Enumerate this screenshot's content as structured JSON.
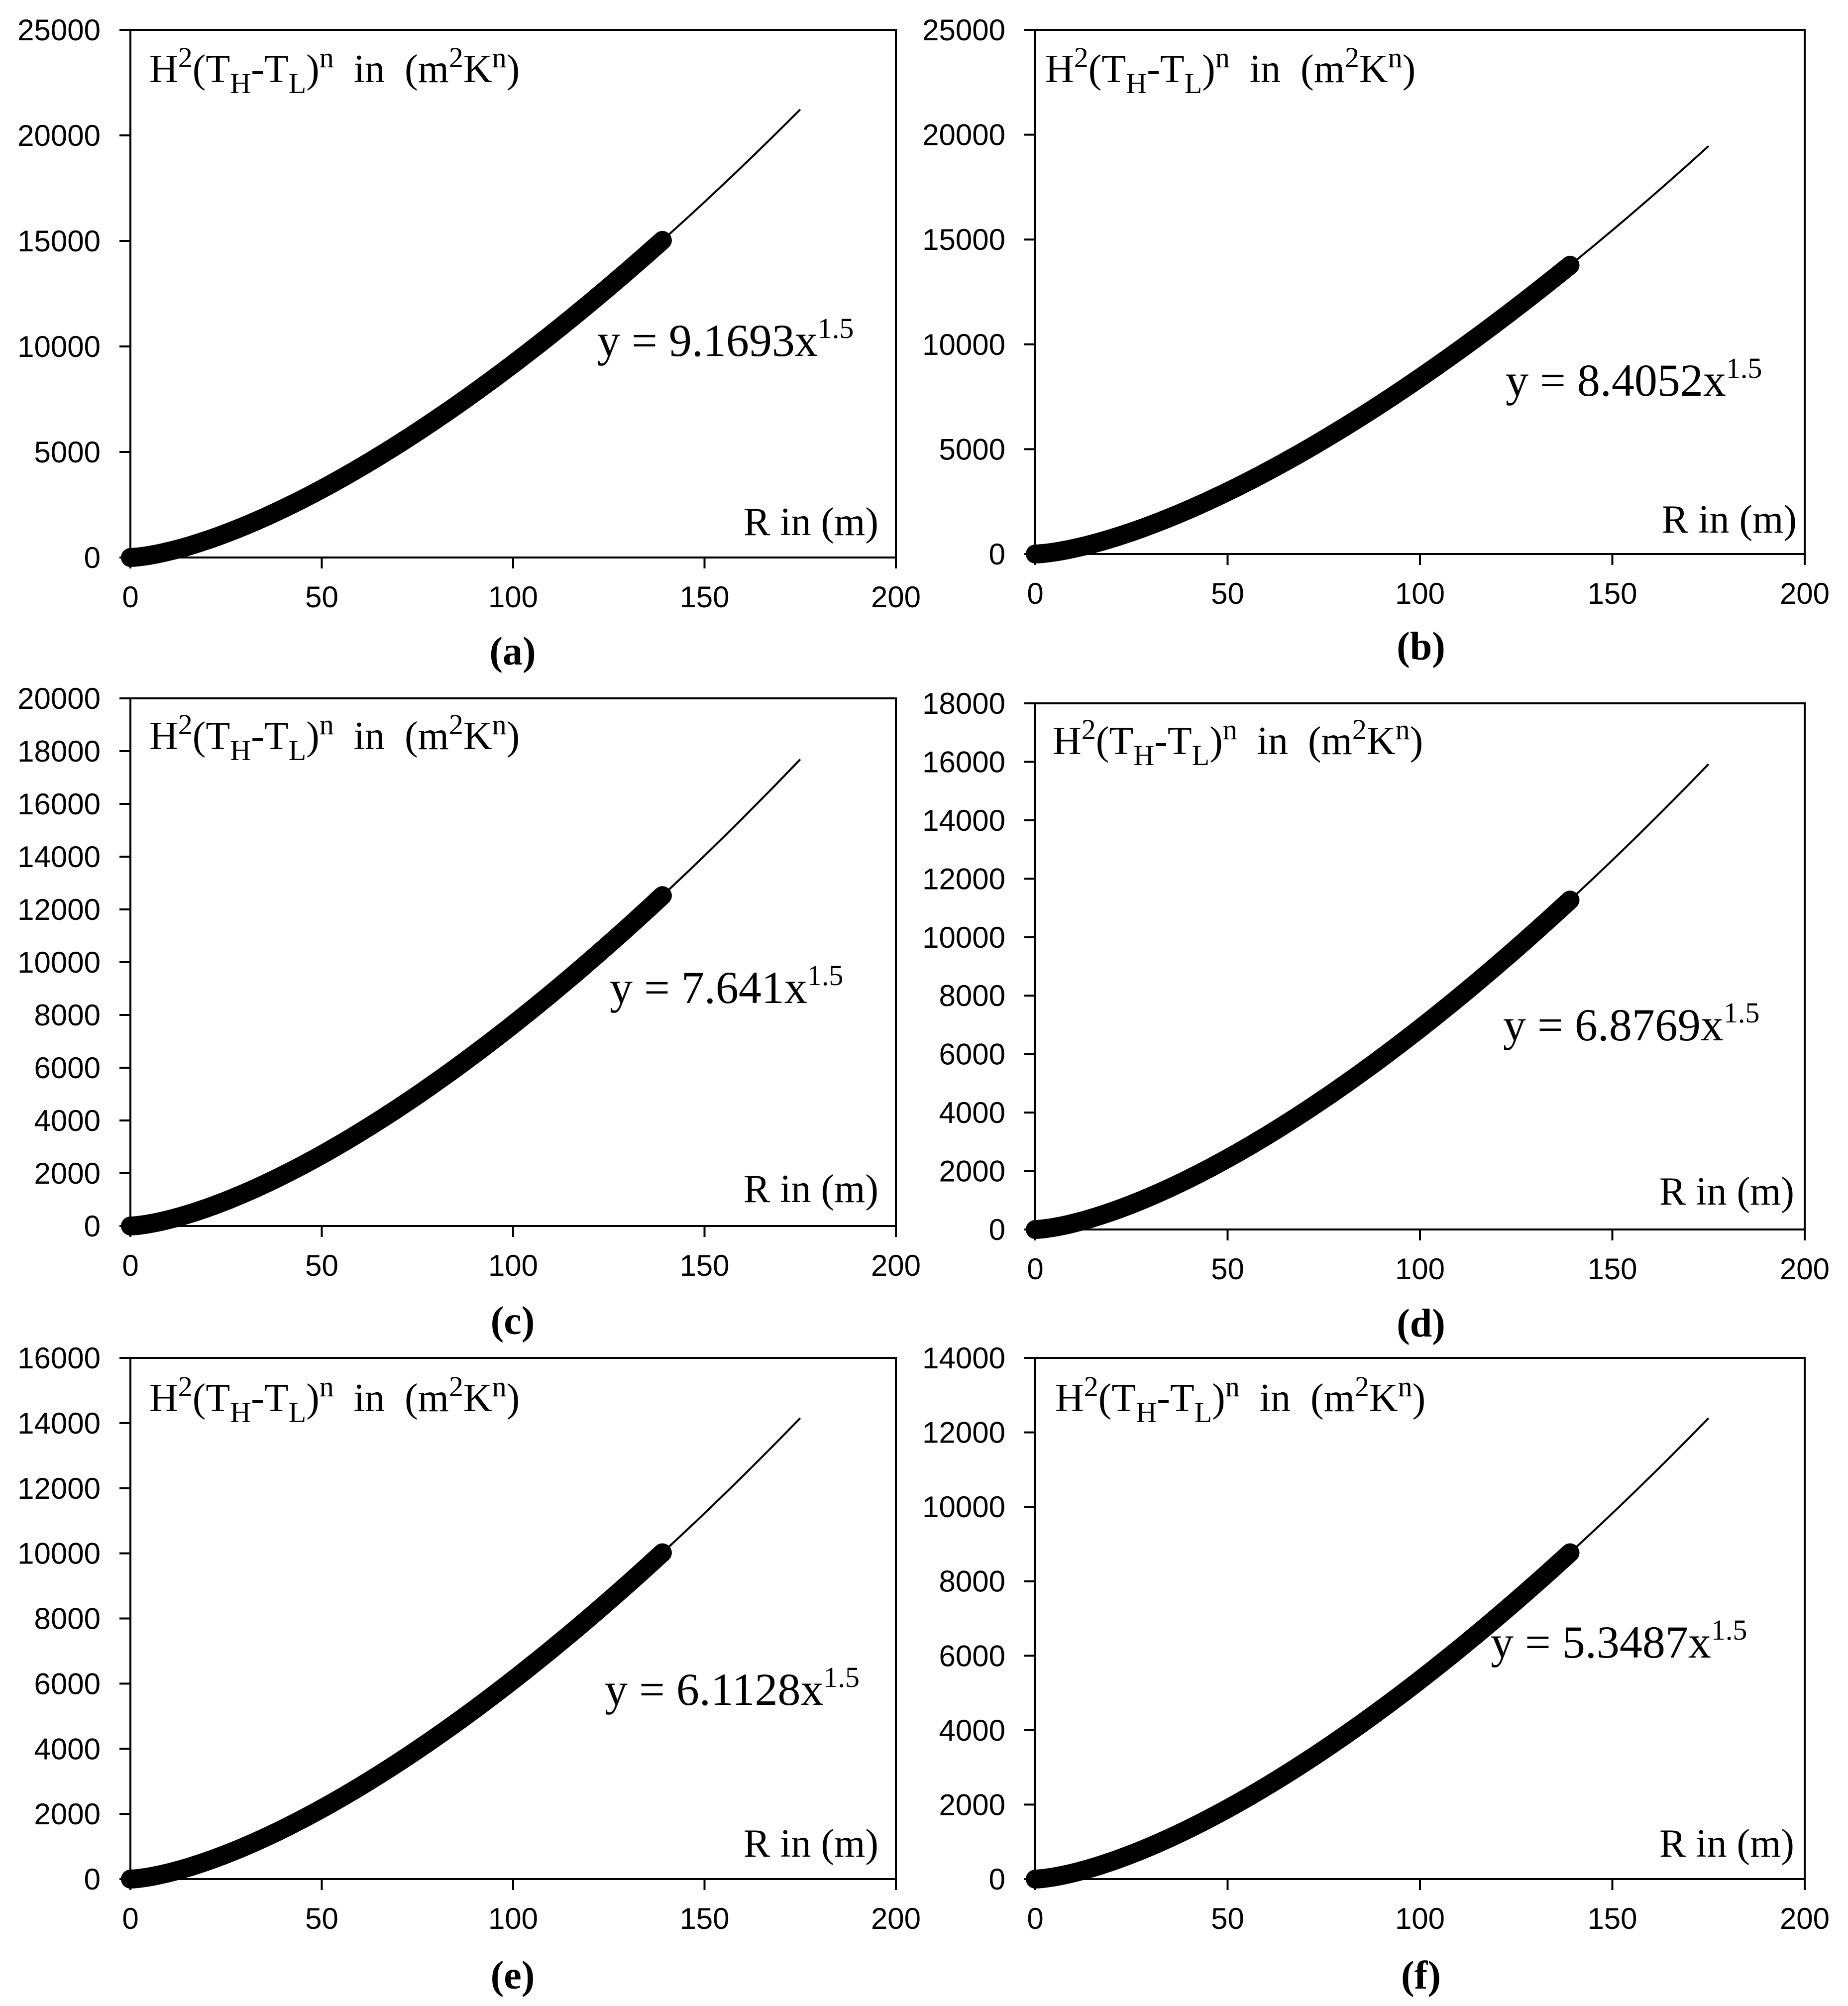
{
  "chart_data": [
    {
      "type": "scatter",
      "panel_label": "(a)",
      "ylabel_parts": [
        "H",
        "2",
        "(T",
        "H",
        "-T",
        "L",
        ")",
        "n",
        "  in  (m",
        "2",
        "K",
        "n",
        ")"
      ],
      "xlabel": "R in (m)",
      "equation": {
        "text": "y = 9.1693x",
        "exponent": "1.5"
      },
      "coefficient": 9.1693,
      "exponent": 1.5,
      "xlim": [
        0,
        200
      ],
      "ylim": [
        0,
        25000
      ],
      "xticks": [
        0,
        50,
        100,
        150,
        200
      ],
      "yticks": [
        0,
        5000,
        10000,
        15000,
        20000,
        25000
      ],
      "data_x_range": [
        0,
        139
      ],
      "fit_x_range": [
        0,
        175
      ]
    },
    {
      "type": "scatter",
      "panel_label": "(b)",
      "ylabel_parts": [
        "H",
        "2",
        "(T",
        "H",
        "-T",
        "L",
        ")",
        "n",
        "  in  (m",
        "2",
        "K",
        "n",
        ")"
      ],
      "xlabel": "R in (m)",
      "equation": {
        "text": "y = 8.4052x",
        "exponent": "1.5"
      },
      "coefficient": 8.4052,
      "exponent": 1.5,
      "xlim": [
        0,
        200
      ],
      "ylim": [
        0,
        25000
      ],
      "xticks": [
        0,
        50,
        100,
        150,
        200
      ],
      "yticks": [
        0,
        5000,
        10000,
        15000,
        20000,
        25000
      ],
      "data_x_range": [
        0,
        139
      ],
      "fit_x_range": [
        0,
        175
      ]
    },
    {
      "type": "scatter",
      "panel_label": "(c)",
      "ylabel_parts": [
        "H",
        "2",
        "(T",
        "H",
        "-T",
        "L",
        ")",
        "n",
        "  in  (m",
        "2",
        "K",
        "n",
        ")"
      ],
      "xlabel": "R in (m)",
      "equation": {
        "text": "y = 7.641x",
        "exponent": "1.5"
      },
      "coefficient": 7.641,
      "exponent": 1.5,
      "xlim": [
        0,
        200
      ],
      "ylim": [
        0,
        20000
      ],
      "xticks": [
        0,
        50,
        100,
        150,
        200
      ],
      "yticks": [
        0,
        2000,
        4000,
        6000,
        8000,
        10000,
        12000,
        14000,
        16000,
        18000,
        20000
      ],
      "data_x_range": [
        0,
        139
      ],
      "fit_x_range": [
        0,
        175
      ]
    },
    {
      "type": "scatter",
      "panel_label": "(d)",
      "ylabel_parts": [
        "H",
        "2",
        "(T",
        "H",
        "-T",
        "L",
        ")",
        "n",
        "  in  (m",
        "2",
        "K",
        "n",
        ")"
      ],
      "xlabel": "R in (m)",
      "equation": {
        "text": "y = 6.8769x",
        "exponent": "1.5"
      },
      "coefficient": 6.8769,
      "exponent": 1.5,
      "xlim": [
        0,
        200
      ],
      "ylim": [
        0,
        18000
      ],
      "xticks": [
        0,
        50,
        100,
        150,
        200
      ],
      "yticks": [
        0,
        2000,
        4000,
        6000,
        8000,
        10000,
        12000,
        14000,
        16000,
        18000
      ],
      "data_x_range": [
        0,
        139
      ],
      "fit_x_range": [
        0,
        175
      ]
    },
    {
      "type": "scatter",
      "panel_label": "(e)",
      "ylabel_parts": [
        "H",
        "2",
        "(T",
        "H",
        "-T",
        "L",
        ")",
        "n",
        "  in  (m",
        "2",
        "K",
        "n",
        ")"
      ],
      "xlabel": "R in (m)",
      "equation": {
        "text": "y = 6.1128x",
        "exponent": "1.5"
      },
      "coefficient": 6.1128,
      "exponent": 1.5,
      "xlim": [
        0,
        200
      ],
      "ylim": [
        0,
        16000
      ],
      "xticks": [
        0,
        50,
        100,
        150,
        200
      ],
      "yticks": [
        0,
        2000,
        4000,
        6000,
        8000,
        10000,
        12000,
        14000,
        16000
      ],
      "data_x_range": [
        0,
        139
      ],
      "fit_x_range": [
        0,
        175
      ]
    },
    {
      "type": "scatter",
      "panel_label": "(f)",
      "ylabel_parts": [
        "H",
        "2",
        "(T",
        "H",
        "-T",
        "L",
        ")",
        "n",
        "  in  (m",
        "2",
        "K",
        "n",
        ")"
      ],
      "xlabel": "R in (m)",
      "equation": {
        "text": "y = 5.3487x",
        "exponent": "1.5"
      },
      "coefficient": 5.3487,
      "exponent": 1.5,
      "xlim": [
        0,
        200
      ],
      "ylim": [
        0,
        14000
      ],
      "xticks": [
        0,
        50,
        100,
        150,
        200
      ],
      "yticks": [
        0,
        2000,
        4000,
        6000,
        8000,
        10000,
        12000,
        14000
      ],
      "data_x_range": [
        0,
        139
      ],
      "fit_x_range": [
        0,
        175
      ]
    }
  ]
}
